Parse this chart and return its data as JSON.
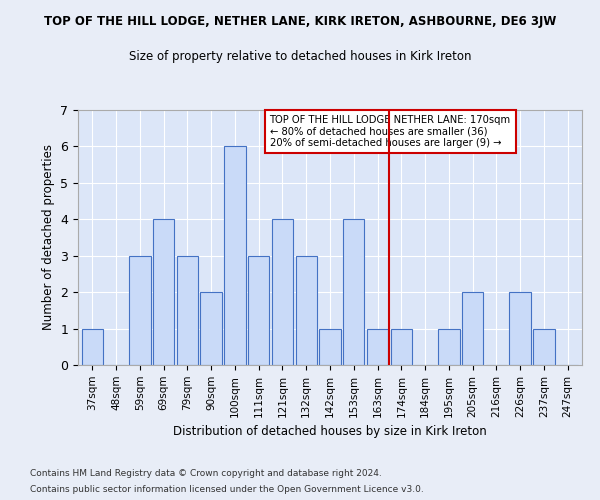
{
  "title": "TOP OF THE HILL LODGE, NETHER LANE, KIRK IRETON, ASHBOURNE, DE6 3JW",
  "subtitle": "Size of property relative to detached houses in Kirk Ireton",
  "xlabel": "Distribution of detached houses by size in Kirk Ireton",
  "ylabel": "Number of detached properties",
  "categories": [
    "37sqm",
    "48sqm",
    "59sqm",
    "69sqm",
    "79sqm",
    "90sqm",
    "100sqm",
    "111sqm",
    "121sqm",
    "132sqm",
    "142sqm",
    "153sqm",
    "163sqm",
    "174sqm",
    "184sqm",
    "195sqm",
    "205sqm",
    "216sqm",
    "226sqm",
    "237sqm",
    "247sqm"
  ],
  "values": [
    1,
    0,
    3,
    4,
    3,
    2,
    6,
    3,
    4,
    3,
    1,
    4,
    1,
    1,
    0,
    1,
    2,
    0,
    2,
    1,
    0
  ],
  "bar_color": "#c9daf8",
  "bar_edge_color": "#4472c4",
  "highlight_line_color": "#cc0000",
  "annotation_box_text": "TOP OF THE HILL LODGE NETHER LANE: 170sqm\n← 80% of detached houses are smaller (36)\n20% of semi-detached houses are larger (9) →",
  "annotation_box_color": "#cc0000",
  "ylim": [
    0,
    7
  ],
  "yticks": [
    0,
    1,
    2,
    3,
    4,
    5,
    6,
    7
  ],
  "footer_line1": "Contains HM Land Registry data © Crown copyright and database right 2024.",
  "footer_line2": "Contains public sector information licensed under the Open Government Licence v3.0.",
  "bg_color": "#e8edf7",
  "plot_bg_color": "#dce6f8",
  "highlight_line_index": 12.5
}
